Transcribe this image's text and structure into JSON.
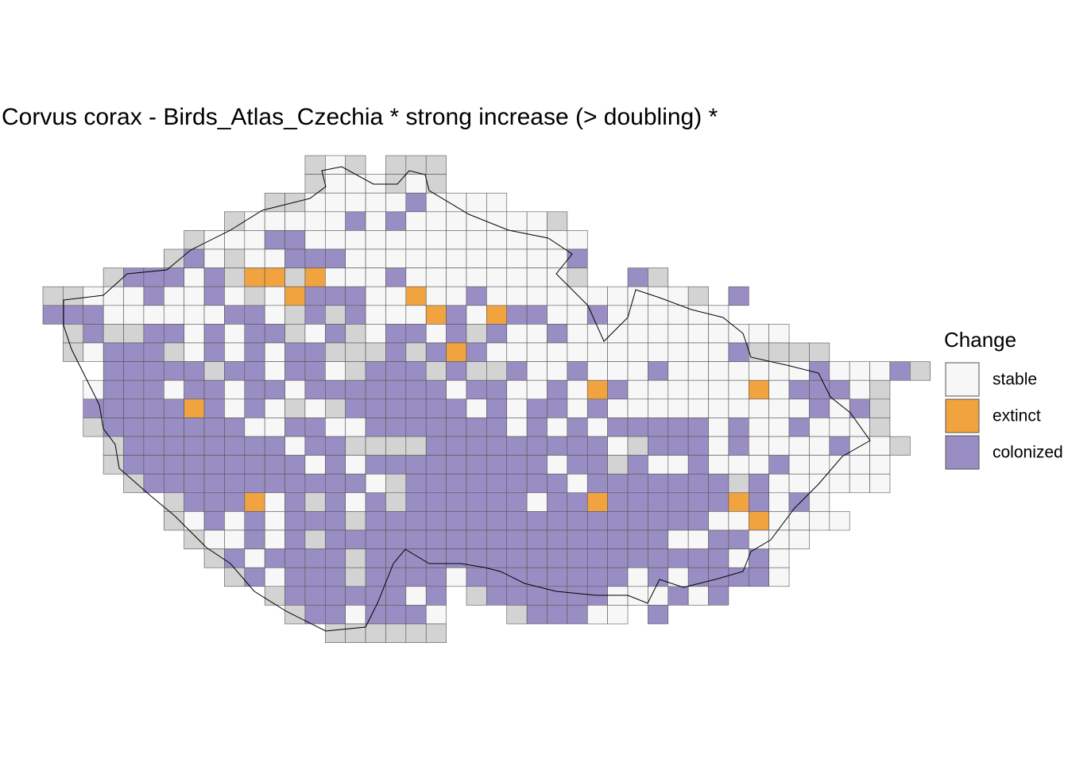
{
  "title": "Corvus corax - Birds_Atlas_Czechia * strong increase (> doubling) *",
  "legend": {
    "title": "Change",
    "items": [
      {
        "label": "stable",
        "color": "#f7f7f7"
      },
      {
        "label": "extinct",
        "color": "#f1a340"
      },
      {
        "label": "colonized",
        "color": "#998ec3"
      }
    ]
  }
}
